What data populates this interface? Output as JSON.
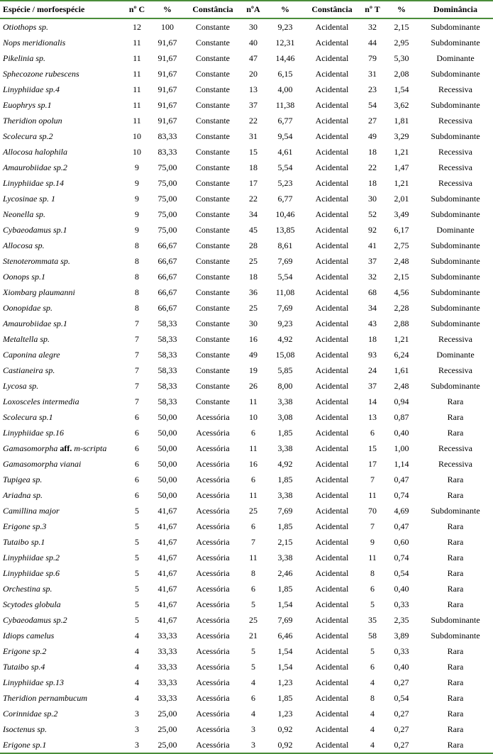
{
  "table": {
    "border_color": "#4a8c3a",
    "headers": {
      "species": "Espécie / morfoespécie",
      "nc": "nº C",
      "pc": "%",
      "constc": "Constância",
      "na": "nºA",
      "pa": "%",
      "consta": "Constância",
      "nt": "nº T",
      "pt": "%",
      "dom": "Dominância"
    },
    "rows": [
      {
        "species_html": "<i>Otiothops</i> sp.",
        "nc": "12",
        "pc": "100",
        "constc": "Constante",
        "na": "30",
        "pa": "9,23",
        "consta": "Acidental",
        "nt": "32",
        "pt": "2,15",
        "dom": "Subdominante"
      },
      {
        "species_html": "<i>Nops meridionalis</i>",
        "nc": "11",
        "pc": "91,67",
        "constc": "Constante",
        "na": "40",
        "pa": "12,31",
        "consta": "Acidental",
        "nt": "44",
        "pt": "2,95",
        "dom": "Subdominante"
      },
      {
        "species_html": "<i>Pikelinia</i> sp.",
        "nc": "11",
        "pc": "91,67",
        "constc": "Constante",
        "na": "47",
        "pa": "14,46",
        "consta": "Acidental",
        "nt": "79",
        "pt": "5,30",
        "dom": "Dominante"
      },
      {
        "species_html": "<i>Sphecozone rubescens</i>",
        "nc": "11",
        "pc": "91,67",
        "constc": "Constante",
        "na": "20",
        "pa": "6,15",
        "consta": "Acidental",
        "nt": "31",
        "pt": "2,08",
        "dom": "Subdominante"
      },
      {
        "species_html": "Linyphiidae sp.4",
        "nc": "11",
        "pc": "91,67",
        "constc": "Constante",
        "na": "13",
        "pa": "4,00",
        "consta": "Acidental",
        "nt": "23",
        "pt": "1,54",
        "dom": "Recessiva"
      },
      {
        "species_html": "<i>Euophrys</i> sp.1",
        "nc": "11",
        "pc": "91,67",
        "constc": "Constante",
        "na": "37",
        "pa": "11,38",
        "consta": "Acidental",
        "nt": "54",
        "pt": "3,62",
        "dom": "Subdominante"
      },
      {
        "species_html": "<i>Theridion opolun</i>",
        "nc": "11",
        "pc": "91,67",
        "constc": "Constante",
        "na": "22",
        "pa": "6,77",
        "consta": "Acidental",
        "nt": "27",
        "pt": "1,81",
        "dom": "Recessiva"
      },
      {
        "species_html": "<i>Scolecura</i> sp.2",
        "nc": "10",
        "pc": "83,33",
        "constc": "Constante",
        "na": "31",
        "pa": "9,54",
        "consta": "Acidental",
        "nt": "49",
        "pt": "3,29",
        "dom": "Subdominante"
      },
      {
        "species_html": "<i>Allocosa halophila</i>",
        "nc": "10",
        "pc": "83,33",
        "constc": "Constante",
        "na": "15",
        "pa": "4,61",
        "consta": "Acidental",
        "nt": "18",
        "pt": "1,21",
        "dom": "Recessiva"
      },
      {
        "species_html": "Amaurobiidae sp.2",
        "nc": "9",
        "pc": "75,00",
        "constc": "Constante",
        "na": "18",
        "pa": "5,54",
        "consta": "Acidental",
        "nt": "22",
        "pt": "1,47",
        "dom": "Recessiva"
      },
      {
        "species_html": "Linyphiidae sp.14",
        "nc": "9",
        "pc": "75,00",
        "constc": "Constante",
        "na": "17",
        "pa": "5,23",
        "consta": "Acidental",
        "nt": "18",
        "pt": "1,21",
        "dom": "Recessiva"
      },
      {
        "species_html": "Lycosinae sp. 1",
        "nc": "9",
        "pc": "75,00",
        "constc": "Constante",
        "na": "22",
        "pa": "6,77",
        "consta": "Acidental",
        "nt": "30",
        "pt": "2,01",
        "dom": "Subdominante"
      },
      {
        "species_html": "<i>Neonella</i> sp.",
        "nc": "9",
        "pc": "75,00",
        "constc": "Constante",
        "na": "34",
        "pa": "10,46",
        "consta": "Acidental",
        "nt": "52",
        "pt": "3,49",
        "dom": "Subdominante"
      },
      {
        "species_html": "<i>Cybaeodamus</i> sp.1",
        "nc": "9",
        "pc": "75,00",
        "constc": "Constante",
        "na": "45",
        "pa": "13,85",
        "consta": "Acidental",
        "nt": "92",
        "pt": "6,17",
        "dom": "Dominante"
      },
      {
        "species_html": "<i>Allocosa</i> sp.",
        "nc": "8",
        "pc": "66,67",
        "constc": "Constante",
        "na": "28",
        "pa": "8,61",
        "consta": "Acidental",
        "nt": "41",
        "pt": "2,75",
        "dom": "Subdominante"
      },
      {
        "species_html": "<i>Stenoterommata</i> sp.",
        "nc": "8",
        "pc": "66,67",
        "constc": "Constante",
        "na": "25",
        "pa": "7,69",
        "consta": "Acidental",
        "nt": "37",
        "pt": "2,48",
        "dom": "Subdominante"
      },
      {
        "species_html": "<i>Oonops</i> sp.1",
        "nc": "8",
        "pc": "66,67",
        "constc": "Constante",
        "na": "18",
        "pa": "5,54",
        "consta": "Acidental",
        "nt": "32",
        "pt": "2,15",
        "dom": "Subdominante"
      },
      {
        "species_html": "<i>Xiombarg plaumanni</i>",
        "nc": "8",
        "pc": "66,67",
        "constc": "Constante",
        "na": "36",
        "pa": "11,08",
        "consta": "Acidental",
        "nt": "68",
        "pt": "4,56",
        "dom": "Subdominante"
      },
      {
        "species_html": "Oonopidae sp.",
        "nc": "8",
        "pc": "66,67",
        "constc": "Constante",
        "na": "25",
        "pa": "7,69",
        "consta": "Acidental",
        "nt": "34",
        "pt": "2,28",
        "dom": "Subdominante"
      },
      {
        "species_html": "Amaurobiidae sp.1",
        "nc": "7",
        "pc": "58,33",
        "constc": "Constante",
        "na": "30",
        "pa": "9,23",
        "consta": "Acidental",
        "nt": "43",
        "pt": "2,88",
        "dom": "Subdominante"
      },
      {
        "species_html": "<i>Metaltella</i> sp.",
        "nc": "7",
        "pc": "58,33",
        "constc": "Constante",
        "na": "16",
        "pa": "4,92",
        "consta": "Acidental",
        "nt": "18",
        "pt": "1,21",
        "dom": "Recessiva"
      },
      {
        "species_html": "<i>Caponina alegre</i>",
        "nc": "7",
        "pc": "58,33",
        "constc": "Constante",
        "na": "49",
        "pa": "15,08",
        "consta": "Acidental",
        "nt": "93",
        "pt": "6,24",
        "dom": "Dominante"
      },
      {
        "species_html": "<i>Castianeira</i> sp.",
        "nc": "7",
        "pc": "58,33",
        "constc": "Constante",
        "na": "19",
        "pa": "5,85",
        "consta": "Acidental",
        "nt": "24",
        "pt": "1,61",
        "dom": "Recessiva"
      },
      {
        "species_html": "<i>Lycosa</i> sp.",
        "nc": "7",
        "pc": "58,33",
        "constc": "Constante",
        "na": "26",
        "pa": "8,00",
        "consta": "Acidental",
        "nt": "37",
        "pt": "2,48",
        "dom": "Subdominante"
      },
      {
        "species_html": "<i>Loxosceles intermedia</i>",
        "nc": "7",
        "pc": "58,33",
        "constc": "Constante",
        "na": "11",
        "pa": "3,38",
        "consta": "Acidental",
        "nt": "14",
        "pt": "0,94",
        "dom": "Rara"
      },
      {
        "species_html": "<i>Scolecura</i> sp.1",
        "nc": "6",
        "pc": "50,00",
        "constc": "Acessória",
        "na": "10",
        "pa": "3,08",
        "consta": "Acidental",
        "nt": "13",
        "pt": "0,87",
        "dom": "Rara"
      },
      {
        "species_html": "Linyphiidae sp.16",
        "nc": "6",
        "pc": "50,00",
        "constc": "Acessória",
        "na": "6",
        "pa": "1,85",
        "consta": "Acidental",
        "nt": "6",
        "pt": "0,40",
        "dom": "Rara"
      },
      {
        "species_html": "<i>Gamasomorpha</i> <span class=\"roman\"><b>aff.</b></span> <i>m-scripta</i>",
        "nc": "6",
        "pc": "50,00",
        "constc": "Acessória",
        "na": "11",
        "pa": "3,38",
        "consta": "Acidental",
        "nt": "15",
        "pt": "1,00",
        "dom": "Recessiva"
      },
      {
        "species_html": "<i>Gamasomorpha vianai</i>",
        "nc": "6",
        "pc": "50,00",
        "constc": "Acessória",
        "na": "16",
        "pa": "4,92",
        "consta": "Acidental",
        "nt": "17",
        "pt": "1,14",
        "dom": "Recessiva"
      },
      {
        "species_html": "<i>Tupigea</i> sp.",
        "nc": "6",
        "pc": "50,00",
        "constc": "Acessória",
        "na": "6",
        "pa": "1,85",
        "consta": "Acidental",
        "nt": "7",
        "pt": "0,47",
        "dom": "Rara"
      },
      {
        "species_html": "<i>Ariadna</i> sp.",
        "nc": "6",
        "pc": "50,00",
        "constc": "Acessória",
        "na": "11",
        "pa": "3,38",
        "consta": "Acidental",
        "nt": "11",
        "pt": "0,74",
        "dom": "Rara"
      },
      {
        "species_html": "<i>Camillina major</i>",
        "nc": "5",
        "pc": "41,67",
        "constc": "Acessória",
        "na": "25",
        "pa": "7,69",
        "consta": "Acidental",
        "nt": "70",
        "pt": "4,69",
        "dom": "Subdominante"
      },
      {
        "species_html": "<i>Erigone</i> sp.3",
        "nc": "5",
        "pc": "41,67",
        "constc": "Acessória",
        "na": "6",
        "pa": "1,85",
        "consta": "Acidental",
        "nt": "7",
        "pt": "0,47",
        "dom": "Rara"
      },
      {
        "species_html": "<i>Tutaibo</i> sp.1",
        "nc": "5",
        "pc": "41,67",
        "constc": "Acessória",
        "na": "7",
        "pa": "2,15",
        "consta": "Acidental",
        "nt": "9",
        "pt": "0,60",
        "dom": "Rara"
      },
      {
        "species_html": "Linyphiidae sp.2",
        "nc": "5",
        "pc": "41,67",
        "constc": "Acessória",
        "na": "11",
        "pa": "3,38",
        "consta": "Acidental",
        "nt": "11",
        "pt": "0,74",
        "dom": "Rara"
      },
      {
        "species_html": "Linyphiidae sp.6",
        "nc": "5",
        "pc": "41,67",
        "constc": "Acessória",
        "na": "8",
        "pa": "2,46",
        "consta": "Acidental",
        "nt": "8",
        "pt": "0,54",
        "dom": "Rara"
      },
      {
        "species_html": "<i>Orchestina</i> sp.",
        "nc": "5",
        "pc": "41,67",
        "constc": "Acessória",
        "na": "6",
        "pa": "1,85",
        "consta": "Acidental",
        "nt": "6",
        "pt": "0,40",
        "dom": "Rara"
      },
      {
        "species_html": "<i>Scytodes globula</i>",
        "nc": "5",
        "pc": "41,67",
        "constc": "Acessória",
        "na": "5",
        "pa": "1,54",
        "consta": "Acidental",
        "nt": "5",
        "pt": "0,33",
        "dom": "Rara"
      },
      {
        "species_html": "<i>Cybaeodamus</i> sp.2",
        "nc": "5",
        "pc": "41,67",
        "constc": "Acessória",
        "na": "25",
        "pa": "7,69",
        "consta": "Acidental",
        "nt": "35",
        "pt": "2,35",
        "dom": "Subdominante"
      },
      {
        "species_html": "<i>Idiops camelus</i>",
        "nc": "4",
        "pc": "33,33",
        "constc": "Acessória",
        "na": "21",
        "pa": "6,46",
        "consta": "Acidental",
        "nt": "58",
        "pt": "3,89",
        "dom": "Subdominante"
      },
      {
        "species_html": "<i>Erigone</i>  sp.2",
        "nc": "4",
        "pc": "33,33",
        "constc": "Acessória",
        "na": "5",
        "pa": "1,54",
        "consta": "Acidental",
        "nt": "5",
        "pt": "0,33",
        "dom": "Rara"
      },
      {
        "species_html": "<i>Tutaibo</i> sp.4",
        "nc": "4",
        "pc": "33,33",
        "constc": "Acessória",
        "na": "5",
        "pa": "1,54",
        "consta": "Acidental",
        "nt": "6",
        "pt": "0,40",
        "dom": "Rara"
      },
      {
        "species_html": "Linyphiidae sp.13",
        "nc": "4",
        "pc": "33,33",
        "constc": "Acessória",
        "na": "4",
        "pa": "1,23",
        "consta": "Acidental",
        "nt": "4",
        "pt": "0,27",
        "dom": "Rara"
      },
      {
        "species_html": "<i>Theridion pernambucum</i>",
        "nc": "4",
        "pc": "33,33",
        "constc": "Acessória",
        "na": "6",
        "pa": "1,85",
        "consta": "Acidental",
        "nt": "8",
        "pt": "0,54",
        "dom": "Rara"
      },
      {
        "species_html": "Corinnidae sp.2",
        "nc": "3",
        "pc": "25,00",
        "constc": "Acessória",
        "na": "4",
        "pa": "1,23",
        "consta": "Acidental",
        "nt": "4",
        "pt": "0,27",
        "dom": "Rara"
      },
      {
        "species_html": "<i>Isoctenus</i> sp.",
        "nc": "3",
        "pc": "25,00",
        "constc": "Acessória",
        "na": "3",
        "pa": "0,92",
        "consta": "Acidental",
        "nt": "4",
        "pt": "0,27",
        "dom": "Rara"
      },
      {
        "species_html": "<i>Erigone</i> sp.1",
        "nc": "3",
        "pc": "25,00",
        "constc": "Acessória",
        "na": "3",
        "pa": "0,92",
        "consta": "Acidental",
        "nt": "4",
        "pt": "0,27",
        "dom": "Rara"
      }
    ]
  }
}
